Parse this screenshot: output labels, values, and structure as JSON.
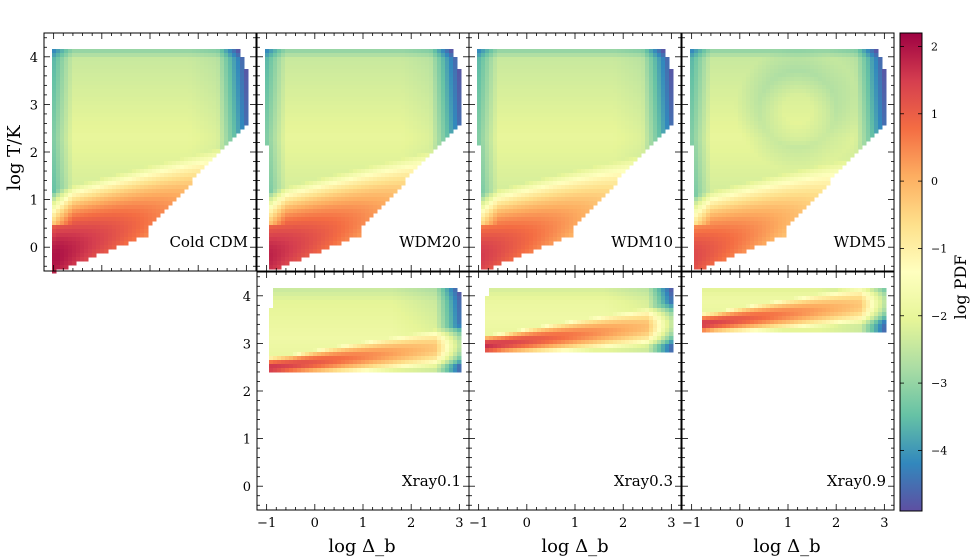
{
  "chart_data": {
    "type": "heatmap",
    "description_free": true,
    "xlabel": "log Δ_b",
    "ylabel": "log T/K",
    "xlim": [
      -1.2,
      3.2
    ],
    "ylim": [
      -0.5,
      4.5
    ],
    "xticks": [
      -1,
      0,
      1,
      2,
      3
    ],
    "yticks": [
      0,
      1,
      2,
      3,
      4
    ],
    "xtick_labels": [
      "−1",
      "0",
      "1",
      "2",
      "3"
    ],
    "ytick_labels": [
      "0",
      "1",
      "2",
      "3",
      "4"
    ],
    "colorbar": {
      "label": "log PDF",
      "range": [
        -4.9,
        2.2
      ],
      "ticks": [
        2,
        1,
        0,
        -1,
        -2,
        -3,
        -4
      ],
      "tick_labels": [
        "2",
        "1",
        "0",
        "−1",
        "−2",
        "−3",
        "−4"
      ],
      "colors": [
        "#5e4fa2",
        "#3288bd",
        "#66c2a5",
        "#abdda4",
        "#e6f598",
        "#ffffbf",
        "#fee08b",
        "#fdae61",
        "#f46d43",
        "#d53e4f",
        "#9e0142"
      ]
    },
    "panels": [
      {
        "name": "Cold CDM",
        "row": 0,
        "col": 0,
        "model": "cdm",
        "floor_T": null,
        "peak_level": 2.0
      },
      {
        "name": "WDM20",
        "row": 0,
        "col": 1,
        "model": "wdm",
        "floor_T": null,
        "peak_level": 1.8
      },
      {
        "name": "WDM10",
        "row": 0,
        "col": 2,
        "model": "wdm",
        "floor_T": null,
        "peak_level": 1.5
      },
      {
        "name": "WDM5",
        "row": 0,
        "col": 3,
        "model": "wdm5",
        "floor_T": null,
        "peak_level": 1.3
      },
      {
        "name": "Xray0.1",
        "row": 1,
        "col": 1,
        "model": "xray",
        "floor_T": 2.4,
        "peak_level": 1.6
      },
      {
        "name": "Xray0.3",
        "row": 1,
        "col": 2,
        "model": "xray",
        "floor_T": 2.85,
        "peak_level": 1.7
      },
      {
        "name": "Xray0.9",
        "row": 1,
        "col": 3,
        "model": "xray",
        "floor_T": 3.3,
        "peak_level": 1.6
      }
    ]
  }
}
